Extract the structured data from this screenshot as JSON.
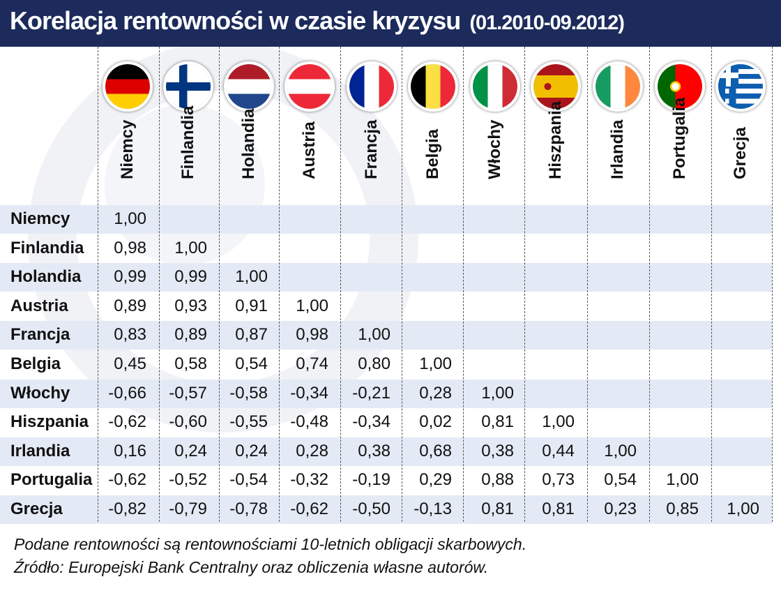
{
  "title": "Korelacja rentowności w czasie kryzysu",
  "period": "(01.2010-09.2012)",
  "colors": {
    "header_bg": "#1c2b5c",
    "row_shade": "#e4eaf5"
  },
  "chart_data": {
    "type": "table",
    "columns": [
      "Niemcy",
      "Finlandia",
      "Holandia",
      "Austria",
      "Francja",
      "Belgia",
      "Włochy",
      "Hiszpania",
      "Irlandia",
      "Portugalia",
      "Grecja"
    ],
    "rows": [
      {
        "label": "Niemcy",
        "values": [
          "1,00"
        ]
      },
      {
        "label": "Finlandia",
        "values": [
          "0,98",
          "1,00"
        ]
      },
      {
        "label": "Holandia",
        "values": [
          "0,99",
          "0,99",
          "1,00"
        ]
      },
      {
        "label": "Austria",
        "values": [
          "0,89",
          "0,93",
          "0,91",
          "1,00"
        ]
      },
      {
        "label": "Francja",
        "values": [
          "0,83",
          "0,89",
          "0,87",
          "0,98",
          "1,00"
        ]
      },
      {
        "label": "Belgia",
        "values": [
          "0,45",
          "0,58",
          "0,54",
          "0,74",
          "0,80",
          "1,00"
        ]
      },
      {
        "label": "Włochy",
        "values": [
          "-0,66",
          "-0,57",
          "-0,58",
          "-0,34",
          "-0,21",
          "0,28",
          "1,00"
        ]
      },
      {
        "label": "Hiszpania",
        "values": [
          "-0,62",
          "-0,60",
          "-0,55",
          "-0,48",
          "-0,34",
          "0,02",
          "0,81",
          "1,00"
        ]
      },
      {
        "label": "Irlandia",
        "values": [
          "0,16",
          "0,24",
          "0,24",
          "0,28",
          "0,38",
          "0,68",
          "0,38",
          "0,44",
          "1,00"
        ]
      },
      {
        "label": "Portugalia",
        "values": [
          "-0,62",
          "-0,52",
          "-0,54",
          "-0,32",
          "-0,19",
          "0,29",
          "0,88",
          "0,73",
          "0,54",
          "1,00"
        ]
      },
      {
        "label": "Grecja",
        "values": [
          "-0,82",
          "-0,79",
          "-0,78",
          "-0,62",
          "-0,50",
          "-0,13",
          "0,81",
          "0,81",
          "0,23",
          "0,85",
          "1,00"
        ]
      }
    ]
  },
  "flags": [
    "german-flag-icon",
    "finnish-flag-icon",
    "dutch-flag-icon",
    "austrian-flag-icon",
    "french-flag-icon",
    "belgian-flag-icon",
    "italian-flag-icon",
    "spanish-flag-icon",
    "irish-flag-icon",
    "portuguese-flag-icon",
    "greek-flag-icon"
  ],
  "notes": {
    "line1": "Podane rentowności są rentownościami 10-letnich obligacji skarbowych.",
    "line2": "Źródło: Europejski Bank Centralny oraz obliczenia własne autorów."
  }
}
